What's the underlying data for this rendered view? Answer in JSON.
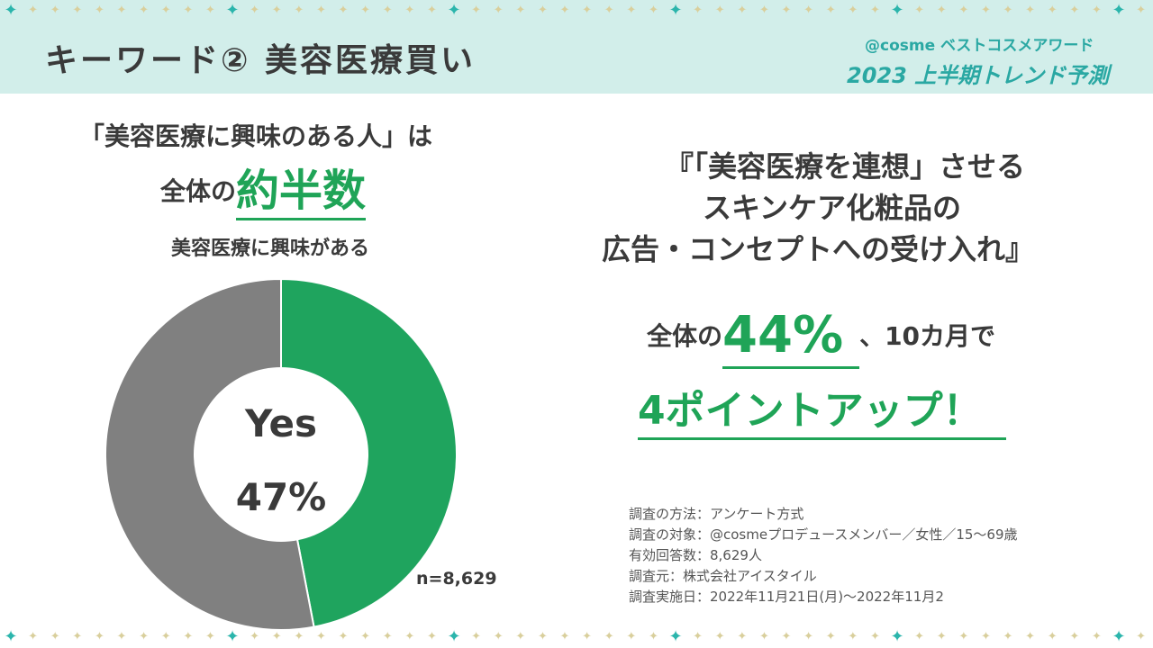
{
  "header": {
    "title": "キーワード② 美容医療買い",
    "brand_line": "@cosme ベストコスメアワード",
    "brand_year": "2023 上半期トレンド予測"
  },
  "left": {
    "headline_1": "「美容医療に興味のある人」は",
    "headline_2_prefix": "全体の",
    "headline_2_emph": "約半数",
    "chart_caption": "美容医療に興味がある"
  },
  "right": {
    "quote_1": "『「美容医療を連想」させる",
    "quote_2": "スキンケア化粧品の",
    "quote_3": "広告・コンセプトへの受け入れ』",
    "stat_prefix": "全体の",
    "stat_emph": "44%",
    "stat_suffix": "、10カ月で",
    "stat_line2": "4ポイントアップ！"
  },
  "method": {
    "line_1": "調査の方法：アンケート方式",
    "line_2": "調査の対象：@cosmeプロデュースメンバー／女性／15〜69歳",
    "line_3": "有効回答数：8,629人",
    "line_4": "調査元：株式会社アイスタイル",
    "line_5": "調査実施日：2022年11月21日(月)〜2022年11月2"
  },
  "chart_data": {
    "type": "pie",
    "donut": true,
    "center_label": "Yes",
    "center_value": "47%",
    "n_label": "n=8,629",
    "slices": [
      {
        "value": 47,
        "color": "#1fa45e"
      },
      {
        "value": 53,
        "color": "#808080"
      }
    ]
  },
  "colors": {
    "accent_green": "#1fa457",
    "header_band": "#d2eeea",
    "brand_teal": "#2aa8a3",
    "star_gold": "#d9cf9c",
    "star_teal": "#2bb5ac"
  }
}
